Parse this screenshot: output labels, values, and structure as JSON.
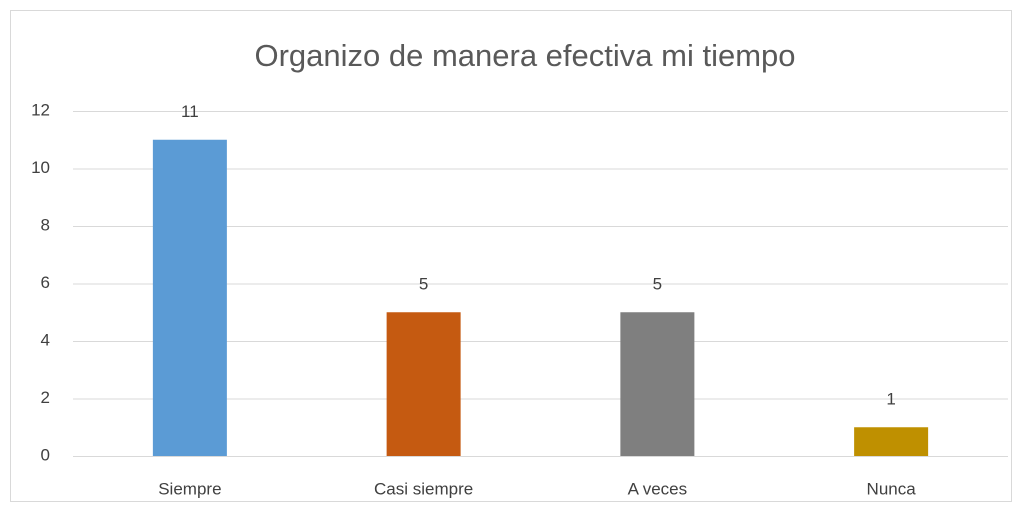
{
  "chart_data": {
    "type": "bar",
    "title": "Organizo de manera efectiva mi tiempo",
    "categories": [
      "Siempre",
      "Casi siempre",
      "A veces",
      "Nunca"
    ],
    "values": [
      11,
      5,
      5,
      1
    ],
    "colors": [
      "#5b9bd5",
      "#c55a11",
      "#7f7f7f",
      "#bf9000"
    ],
    "ylim": [
      0,
      12
    ],
    "yticks": [
      0,
      2,
      4,
      6,
      8,
      10,
      12
    ],
    "grid": true,
    "data_labels": true
  }
}
